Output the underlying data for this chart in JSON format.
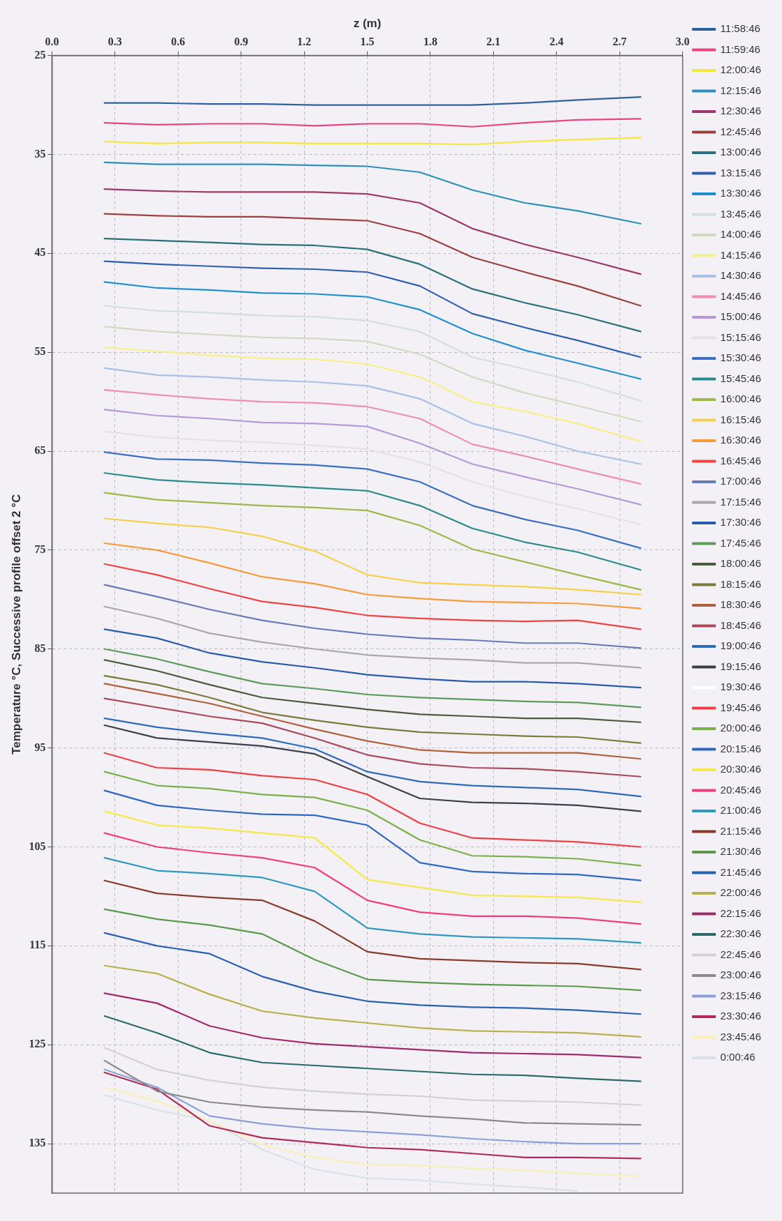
{
  "chart_data": {
    "type": "line",
    "xlabel": "z (m)",
    "ylabel": "Temperature °C, Successive profile offset 2 °C",
    "x": [
      0.25,
      0.5,
      0.75,
      1.0,
      1.25,
      1.5,
      1.75,
      2.0,
      2.25,
      2.5,
      2.8
    ],
    "xlim": [
      0,
      3
    ],
    "xticks": [
      {
        "value": 0,
        "label": "0.0"
      },
      0.3,
      0.6,
      0.9,
      1.2,
      1.5,
      1.8,
      2.1,
      2.4,
      2.7,
      {
        "value": 3,
        "label": "3.0"
      }
    ],
    "ylim": [
      140,
      25
    ],
    "yticks": [
      25,
      35,
      45,
      55,
      65,
      75,
      85,
      95,
      105,
      115,
      125,
      135
    ],
    "grid": true,
    "legend": "right",
    "marker": "none",
    "line_style": "solid",
    "series": [
      {
        "name": "11:58:46",
        "color": "#2e5f9e",
        "values": [
          29.8,
          29.8,
          29.9,
          29.9,
          30.0,
          30.0,
          30.0,
          30.0,
          29.8,
          29.5,
          29.2
        ]
      },
      {
        "name": "11:59:46",
        "color": "#e8457f",
        "values": [
          31.8,
          32.0,
          31.9,
          31.9,
          32.1,
          31.9,
          31.9,
          32.2,
          31.8,
          31.5,
          31.4
        ]
      },
      {
        "name": "12:00:46",
        "color": "#f5e63c",
        "values": [
          33.7,
          33.9,
          33.8,
          33.8,
          33.9,
          33.9,
          33.9,
          34.0,
          33.7,
          33.5,
          33.3
        ]
      },
      {
        "name": "12:15:46",
        "color": "#2e8fb8",
        "values": [
          35.8,
          36.0,
          36.0,
          36.0,
          36.1,
          36.2,
          36.8,
          38.6,
          39.9,
          40.7,
          42.0
        ]
      },
      {
        "name": "12:30:46",
        "color": "#9b3a6a",
        "values": [
          38.5,
          38.7,
          38.8,
          38.8,
          38.8,
          39.0,
          39.9,
          42.5,
          44.1,
          45.4,
          47.1
        ]
      },
      {
        "name": "12:45:46",
        "color": "#9b3f3f",
        "values": [
          41.0,
          41.2,
          41.3,
          41.3,
          41.5,
          41.7,
          43.0,
          45.4,
          46.9,
          48.3,
          50.3
        ]
      },
      {
        "name": "13:00:46",
        "color": "#2a6f7a",
        "values": [
          43.5,
          43.7,
          43.9,
          44.1,
          44.2,
          44.6,
          46.1,
          48.6,
          50.0,
          51.2,
          52.9
        ]
      },
      {
        "name": "13:15:46",
        "color": "#2d5fb0",
        "values": [
          45.8,
          46.1,
          46.3,
          46.5,
          46.6,
          46.9,
          48.3,
          51.1,
          52.5,
          53.8,
          55.5
        ]
      },
      {
        "name": "13:30:46",
        "color": "#1f8fd0",
        "values": [
          47.9,
          48.5,
          48.7,
          49.0,
          49.1,
          49.4,
          50.7,
          53.1,
          54.8,
          56.1,
          57.7
        ]
      },
      {
        "name": "13:45:46",
        "color": "#d3dde4",
        "values": [
          50.3,
          50.8,
          51.0,
          51.3,
          51.4,
          51.8,
          52.9,
          55.5,
          56.7,
          58.0,
          59.9
        ]
      },
      {
        "name": "14:00:46",
        "color": "#d2d8c2",
        "values": [
          52.4,
          52.9,
          53.2,
          53.5,
          53.6,
          53.9,
          55.2,
          57.5,
          59.1,
          60.4,
          62.0
        ]
      },
      {
        "name": "14:15:46",
        "color": "#f7ef8a",
        "values": [
          54.5,
          54.9,
          55.3,
          55.6,
          55.7,
          56.2,
          57.5,
          60.0,
          61.0,
          62.2,
          64.0
        ]
      },
      {
        "name": "14:30:46",
        "color": "#a9c0e6",
        "values": [
          56.6,
          57.3,
          57.5,
          57.8,
          58.0,
          58.4,
          59.7,
          62.2,
          63.5,
          65.0,
          66.3
        ]
      },
      {
        "name": "14:45:46",
        "color": "#ef8fb0",
        "values": [
          58.8,
          59.3,
          59.7,
          60.0,
          60.1,
          60.5,
          61.7,
          64.3,
          65.5,
          66.8,
          68.3
        ]
      },
      {
        "name": "15:00:46",
        "color": "#b49ad8",
        "values": [
          60.8,
          61.4,
          61.7,
          62.1,
          62.2,
          62.5,
          64.2,
          66.3,
          67.6,
          68.8,
          70.4
        ]
      },
      {
        "name": "15:15:46",
        "color": "#e2e2e8",
        "values": [
          63.0,
          63.6,
          63.9,
          64.1,
          64.4,
          64.8,
          66.1,
          68.1,
          69.6,
          70.8,
          72.4
        ]
      },
      {
        "name": "15:30:46",
        "color": "#3a6fc4",
        "values": [
          65.1,
          65.8,
          65.9,
          66.2,
          66.4,
          66.8,
          68.1,
          70.5,
          71.9,
          73.0,
          74.8
        ]
      },
      {
        "name": "15:45:46",
        "color": "#2a8a8c",
        "values": [
          67.2,
          67.9,
          68.2,
          68.4,
          68.7,
          69.0,
          70.5,
          72.8,
          74.2,
          75.2,
          77.0
        ]
      },
      {
        "name": "16:00:46",
        "color": "#9cb84a",
        "values": [
          69.2,
          69.9,
          70.2,
          70.5,
          70.7,
          71.0,
          72.5,
          74.9,
          76.2,
          77.5,
          79.0
        ]
      },
      {
        "name": "16:15:46",
        "color": "#f7d04a",
        "values": [
          71.8,
          72.3,
          72.7,
          73.6,
          75.1,
          77.5,
          78.3,
          78.5,
          78.7,
          79.0,
          79.5
        ]
      },
      {
        "name": "16:30:46",
        "color": "#f79a3a",
        "values": [
          74.3,
          75.0,
          76.3,
          77.7,
          78.4,
          79.5,
          79.9,
          80.2,
          80.3,
          80.4,
          80.9
        ]
      },
      {
        "name": "16:45:46",
        "color": "#ef4444",
        "values": [
          76.4,
          77.5,
          78.9,
          80.2,
          80.8,
          81.6,
          81.9,
          82.1,
          82.2,
          82.1,
          83.0
        ]
      },
      {
        "name": "17:00:46",
        "color": "#6a7ab8",
        "values": [
          78.5,
          79.7,
          81.0,
          82.1,
          82.9,
          83.5,
          83.9,
          84.1,
          84.4,
          84.4,
          84.9
        ]
      },
      {
        "name": "17:15:46",
        "color": "#a8a8a8",
        "values": [
          80.7,
          81.9,
          83.4,
          84.3,
          85.0,
          85.6,
          85.9,
          86.1,
          86.4,
          86.4,
          86.9
        ]
      },
      {
        "name": "17:30:46",
        "color": "#2a5aa8",
        "values": [
          83.0,
          83.9,
          85.4,
          86.3,
          86.9,
          87.6,
          88.0,
          88.3,
          88.3,
          88.5,
          88.9
        ]
      },
      {
        "name": "17:45:46",
        "color": "#5a9a5a",
        "values": [
          85.0,
          86.0,
          87.3,
          88.5,
          89.0,
          89.6,
          89.9,
          90.1,
          90.3,
          90.4,
          90.9
        ]
      },
      {
        "name": "18:00:46",
        "color": "#4a5a3a",
        "values": [
          86.1,
          87.2,
          88.6,
          89.9,
          90.5,
          91.1,
          91.6,
          91.8,
          92.0,
          92.0,
          92.4
        ]
      },
      {
        "name": "18:15:46",
        "color": "#7a7a3a",
        "values": [
          87.7,
          88.6,
          89.9,
          91.4,
          92.2,
          92.9,
          93.4,
          93.6,
          93.8,
          93.9,
          94.5
        ]
      },
      {
        "name": "18:30:46",
        "color": "#b0603a",
        "values": [
          88.5,
          89.5,
          90.5,
          91.8,
          93.1,
          94.3,
          95.2,
          95.5,
          95.5,
          95.5,
          96.1
        ]
      },
      {
        "name": "18:45:46",
        "color": "#a84a5a",
        "values": [
          90.0,
          90.9,
          91.8,
          92.5,
          94.0,
          95.7,
          96.6,
          97.0,
          97.1,
          97.4,
          97.9
        ]
      },
      {
        "name": "19:00:46",
        "color": "#2f6ab8",
        "values": [
          92.0,
          92.9,
          93.5,
          94.0,
          95.1,
          97.4,
          98.4,
          98.8,
          99.0,
          99.2,
          99.9
        ]
      },
      {
        "name": "19:15:46",
        "color": "#3a3f4a",
        "values": [
          92.7,
          94.0,
          94.4,
          94.8,
          95.6,
          97.9,
          100.1,
          100.5,
          100.6,
          100.8,
          101.4
        ]
      },
      {
        "name": "19:30:46",
        "color": "#ffffff",
        "values": [
          null,
          null,
          null,
          null,
          null,
          null,
          null,
          null,
          null,
          null,
          null
        ]
      },
      {
        "name": "19:45:46",
        "color": "#ef3f45",
        "values": [
          95.5,
          97.0,
          97.2,
          97.8,
          98.2,
          99.7,
          102.6,
          104.1,
          104.3,
          104.5,
          105.0
        ]
      },
      {
        "name": "20:00:46",
        "color": "#7ab04a",
        "values": [
          97.4,
          98.8,
          99.1,
          99.7,
          100.0,
          101.3,
          104.3,
          105.9,
          106.0,
          106.2,
          106.9
        ]
      },
      {
        "name": "20:15:46",
        "color": "#2f68c0",
        "values": [
          99.3,
          100.8,
          101.3,
          101.7,
          101.8,
          102.8,
          106.6,
          107.5,
          107.7,
          107.8,
          108.4
        ]
      },
      {
        "name": "20:30:46",
        "color": "#f7e84a",
        "values": [
          101.4,
          102.8,
          103.1,
          103.6,
          104.1,
          108.3,
          109.1,
          109.9,
          110.0,
          110.1,
          110.6
        ]
      },
      {
        "name": "20:45:46",
        "color": "#ef3f7a",
        "values": [
          103.6,
          105.0,
          105.6,
          106.1,
          107.1,
          110.4,
          111.6,
          112.0,
          112.0,
          112.2,
          112.8
        ]
      },
      {
        "name": "21:00:46",
        "color": "#2f98c0",
        "values": [
          106.1,
          107.4,
          107.7,
          108.1,
          109.5,
          113.2,
          113.8,
          114.1,
          114.2,
          114.3,
          114.7
        ]
      },
      {
        "name": "21:15:46",
        "color": "#8a3a2a",
        "values": [
          108.4,
          109.7,
          110.1,
          110.4,
          112.5,
          115.6,
          116.3,
          116.5,
          116.7,
          116.8,
          117.4
        ]
      },
      {
        "name": "21:30:46",
        "color": "#5a9a4a",
        "values": [
          111.3,
          112.3,
          112.9,
          113.8,
          116.4,
          118.4,
          118.7,
          118.9,
          119.0,
          119.1,
          119.5
        ]
      },
      {
        "name": "21:45:46",
        "color": "#2a60b0",
        "values": [
          113.7,
          115.0,
          115.8,
          118.1,
          119.6,
          120.6,
          121.0,
          121.2,
          121.3,
          121.5,
          121.9
        ]
      },
      {
        "name": "22:00:46",
        "color": "#b8b04a",
        "values": [
          117.0,
          117.8,
          119.9,
          121.6,
          122.3,
          122.8,
          123.3,
          123.6,
          123.7,
          123.8,
          124.2
        ]
      },
      {
        "name": "22:15:46",
        "color": "#a02a6a",
        "values": [
          119.8,
          120.8,
          123.1,
          124.3,
          124.9,
          125.2,
          125.5,
          125.8,
          125.9,
          126.0,
          126.3
        ]
      },
      {
        "name": "22:30:46",
        "color": "#2a6a6a",
        "values": [
          122.1,
          123.8,
          125.8,
          126.8,
          127.1,
          127.4,
          127.7,
          128.0,
          128.1,
          128.4,
          128.7
        ]
      },
      {
        "name": "22:45:46",
        "color": "#d0d0d6",
        "values": [
          125.3,
          127.5,
          128.6,
          129.3,
          129.7,
          130.0,
          130.2,
          130.6,
          130.7,
          130.8,
          131.1
        ]
      },
      {
        "name": "23:00:46",
        "color": "#8a8a8a",
        "values": [
          126.6,
          129.7,
          130.8,
          131.3,
          131.6,
          131.8,
          132.2,
          132.5,
          132.9,
          133.0,
          133.1
        ]
      },
      {
        "name": "23:15:46",
        "color": "#8aa0d8",
        "values": [
          127.5,
          129.3,
          132.2,
          133.0,
          133.5,
          133.8,
          134.1,
          134.5,
          134.8,
          135.0,
          135.0
        ]
      },
      {
        "name": "23:30:46",
        "color": "#b02a5a",
        "values": [
          127.8,
          129.5,
          133.2,
          134.4,
          134.9,
          135.4,
          135.6,
          136.0,
          136.4,
          136.4,
          136.5
        ]
      },
      {
        "name": "23:45:46",
        "color": "#f8f0b8",
        "values": [
          129.3,
          130.7,
          132.7,
          135.1,
          136.4,
          137.1,
          137.2,
          137.5,
          137.7,
          138.0,
          138.3
        ]
      },
      {
        "name": "0:00:46",
        "color": "#d8e2ea",
        "values": [
          130.1,
          131.6,
          132.7,
          135.6,
          137.6,
          138.5,
          138.7,
          139.1,
          139.4,
          139.8,
          null
        ]
      }
    ]
  }
}
